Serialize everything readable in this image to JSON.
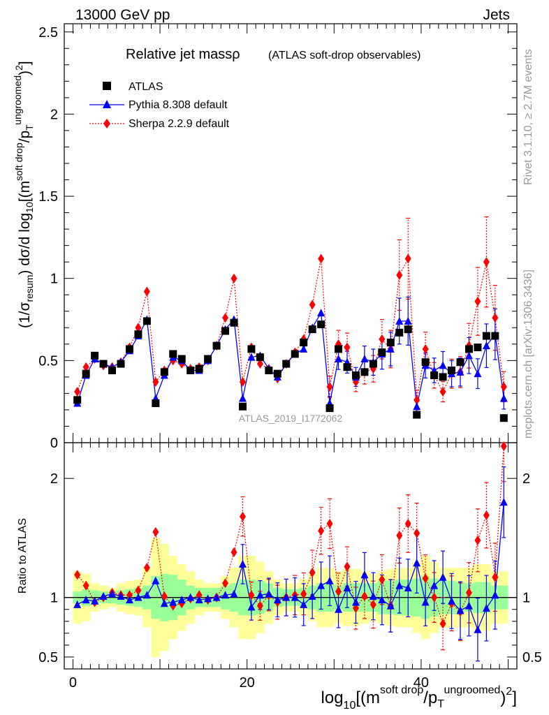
{
  "header": {
    "energy_label": "13000 GeV pp",
    "process_label": "Jets"
  },
  "side_labels": {
    "rivet": "Rivet 3.1.10, ≥ 2.7M events",
    "mcplots": "mcplots.cern.ch [arXiv:1306.3436]"
  },
  "chart_data": {
    "type": "scatter",
    "title": "Relative jet massρ",
    "subtitle": "(ATLAS soft-drop observables)",
    "analysis_label": "ATLAS_2019_I1772062",
    "x": [
      0.5,
      1.5,
      2.5,
      3.5,
      4.5,
      5.5,
      6.5,
      7.5,
      8.5,
      9.5,
      10.5,
      11.5,
      12.5,
      13.5,
      14.5,
      15.5,
      16.5,
      17.5,
      18.5,
      19.5,
      20.5,
      21.5,
      22.5,
      23.5,
      24.5,
      25.5,
      26.5,
      27.5,
      28.5,
      29.5,
      30.5,
      31.5,
      32.5,
      33.5,
      34.5,
      35.5,
      36.5,
      37.5,
      38.5,
      39.5,
      40.5,
      41.5,
      42.5,
      43.5,
      44.5,
      45.5,
      46.5,
      47.5,
      48.5,
      49.5
    ],
    "xlim": [
      -1,
      51
    ],
    "upper_panel": {
      "ylabel": "(1/σresum) dσ/d log10[(m soft drop/pT ungroomed)2]",
      "ylim": [
        0,
        2.55
      ],
      "yticks": [
        "0",
        "0.5",
        "1",
        "1.5",
        "2",
        "2.5"
      ],
      "series": [
        {
          "name": "ATLAS",
          "color": "#000000",
          "marker": "square",
          "values": [
            0.26,
            0.42,
            0.53,
            0.48,
            0.44,
            0.48,
            0.57,
            0.66,
            0.74,
            0.24,
            0.43,
            0.54,
            0.51,
            0.44,
            0.45,
            0.51,
            0.59,
            0.68,
            0.73,
            0.22,
            0.57,
            0.52,
            0.44,
            0.42,
            0.48,
            0.54,
            0.61,
            0.69,
            0.72,
            0.21,
            0.57,
            0.46,
            0.41,
            0.43,
            0.48,
            0.55,
            0.61,
            0.67,
            0.69,
            0.17,
            0.49,
            0.41,
            0.4,
            0.44,
            0.49,
            0.57,
            0.58,
            0.65,
            0.65,
            0.15
          ]
        },
        {
          "name": "Pythia 8.308 default",
          "color": "#0000ff",
          "marker": "triangle",
          "line": "solid",
          "values": [
            0.24,
            0.41,
            0.51,
            0.48,
            0.46,
            0.49,
            0.56,
            0.65,
            0.75,
            0.27,
            0.41,
            0.52,
            0.5,
            0.44,
            0.44,
            0.5,
            0.59,
            0.69,
            0.75,
            0.27,
            0.52,
            0.53,
            0.45,
            0.4,
            0.48,
            0.54,
            0.57,
            0.7,
            0.79,
            0.24,
            0.51,
            0.49,
            0.4,
            0.51,
            0.49,
            0.54,
            0.57,
            0.74,
            0.74,
            0.22,
            0.47,
            0.44,
            0.47,
            0.42,
            0.43,
            0.53,
            0.42,
            0.59,
            0.66,
            0.27
          ]
        },
        {
          "name": "Sherpa 2.2.9 default",
          "color": "#ff0000",
          "marker": "diamond",
          "line": "dotted",
          "values": [
            0.31,
            0.46,
            0.51,
            0.47,
            0.46,
            0.49,
            0.58,
            0.7,
            0.92,
            0.37,
            0.44,
            0.5,
            0.48,
            0.45,
            0.46,
            0.5,
            0.59,
            0.76,
            1.0,
            0.37,
            0.58,
            0.48,
            0.45,
            0.39,
            0.48,
            0.55,
            0.63,
            0.84,
            1.12,
            0.34,
            0.6,
            0.58,
            0.37,
            0.43,
            0.45,
            0.63,
            0.57,
            1.02,
            1.12,
            0.26,
            0.57,
            0.41,
            0.31,
            0.42,
            0.43,
            0.59,
            0.86,
            1.1,
            0.76,
            0.34
          ]
        }
      ]
    },
    "lower_panel": {
      "ylabel": "Ratio to ATLAS",
      "ylim": [
        0.4,
        2.3
      ],
      "yticks": [
        "0.5",
        "1",
        "2"
      ],
      "band_inner": [
        0.05,
        0.07,
        0.06,
        0.05,
        0.05,
        0.06,
        0.07,
        0.08,
        0.1,
        0.18,
        0.2,
        0.19,
        0.15,
        0.1,
        0.08,
        0.08,
        0.08,
        0.1,
        0.12,
        0.15,
        0.15,
        0.14,
        0.12,
        0.08,
        0.07,
        0.07,
        0.08,
        0.1,
        0.12,
        0.12,
        0.1,
        0.12,
        0.12,
        0.12,
        0.12,
        0.14,
        0.14,
        0.15,
        0.15,
        0.16,
        0.18,
        0.16,
        0.14,
        0.14,
        0.13,
        0.12,
        0.13,
        0.13,
        0.1,
        0.1
      ],
      "band_outer": [
        0.22,
        0.2,
        0.12,
        0.1,
        0.08,
        0.12,
        0.14,
        0.15,
        0.25,
        0.5,
        0.45,
        0.35,
        0.28,
        0.22,
        0.15,
        0.12,
        0.12,
        0.18,
        0.25,
        0.35,
        0.35,
        0.3,
        0.22,
        0.15,
        0.12,
        0.12,
        0.15,
        0.2,
        0.25,
        0.25,
        0.22,
        0.24,
        0.24,
        0.22,
        0.2,
        0.22,
        0.24,
        0.25,
        0.25,
        0.3,
        0.35,
        0.3,
        0.25,
        0.25,
        0.25,
        0.25,
        0.28,
        0.28,
        0.22,
        0.22
      ],
      "series": [
        {
          "name": "Pythia 8.308 default",
          "values": [
            0.94,
            0.98,
            0.97,
            1.01,
            1.03,
            1.01,
            0.98,
            1.0,
            1.02,
            1.14,
            0.95,
            0.96,
            0.98,
            1.0,
            0.98,
            0.99,
            1.0,
            1.02,
            1.03,
            1.28,
            0.92,
            1.02,
            1.03,
            0.98,
            1.0,
            1.0,
            0.94,
            1.01,
            1.1,
            1.14,
            0.9,
            1.08,
            0.96,
            1.19,
            1.01,
            0.98,
            0.93,
            1.1,
            1.08,
            1.29,
            0.96,
            1.1,
            1.17,
            0.97,
            0.89,
            0.93,
            0.73,
            0.91,
            1.02,
            1.8
          ]
        },
        {
          "name": "Sherpa 2.2.9 default",
          "values": [
            1.19,
            1.1,
            0.96,
            1.0,
            1.04,
            1.02,
            1.02,
            1.06,
            1.25,
            1.55,
            1.01,
            0.93,
            0.95,
            0.99,
            1.02,
            0.98,
            1.0,
            1.12,
            1.38,
            1.68,
            1.02,
            0.93,
            1.02,
            0.96,
            1.0,
            1.02,
            1.03,
            1.21,
            1.56,
            1.62,
            1.05,
            1.26,
            0.91,
            1.01,
            0.94,
            1.15,
            0.93,
            1.52,
            1.62,
            1.54,
            1.16,
            1.0,
            0.78,
            0.95,
            0.88,
            1.04,
            1.48,
            1.69,
            1.17,
            2.27
          ]
        }
      ]
    },
    "xlabel": "log10[(m soft drop/pT ungroomed)2]",
    "xticks": [
      "0",
      "20",
      "40"
    ]
  }
}
